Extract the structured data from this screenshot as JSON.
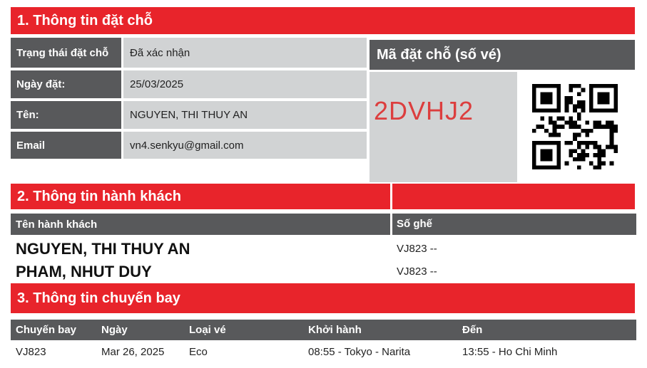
{
  "colors": {
    "section_bar_red": "#e8242b",
    "header_dark_gray": "#58595b",
    "cell_light_gray": "#d1d3d4",
    "booking_code_red": "#dc3e3e"
  },
  "section1": {
    "title": "1. Thông tin đặt chỗ",
    "rows": [
      {
        "label": "Trạng thái đặt chỗ",
        "value": "Đã xác nhận"
      },
      {
        "label": "Ngày đặt:",
        "value": "25/03/2025"
      },
      {
        "label": "Tên:",
        "value": "NGUYEN, THI THUY AN"
      },
      {
        "label": "Email",
        "value": "vn4.senkyu@gmail.com"
      }
    ],
    "booking": {
      "header": "Mã đặt chỗ (số vé)",
      "code": "2DVHJ2",
      "qr_icon": "qr-code-icon"
    }
  },
  "section2": {
    "title": "2. Thông tin hành khách",
    "columns": {
      "name": "Tên hành khách",
      "seat": "Số ghế"
    },
    "passengers": [
      {
        "name": "NGUYEN, THI THUY AN",
        "seat": "VJ823 --"
      },
      {
        "name": "PHAM, NHUT DUY",
        "seat": "VJ823 --"
      }
    ]
  },
  "section3": {
    "title": "3. Thông tin chuyến bay",
    "columns": [
      "Chuyến bay",
      "Ngày",
      "Loại vé",
      "Khởi hành",
      "Đến"
    ],
    "flights": [
      {
        "flight": "VJ823",
        "date": "Mar 26, 2025",
        "fare": "Eco",
        "depart": "08:55 - Tokyo - Narita",
        "arrive": "13:55 - Ho Chi Minh"
      }
    ]
  }
}
